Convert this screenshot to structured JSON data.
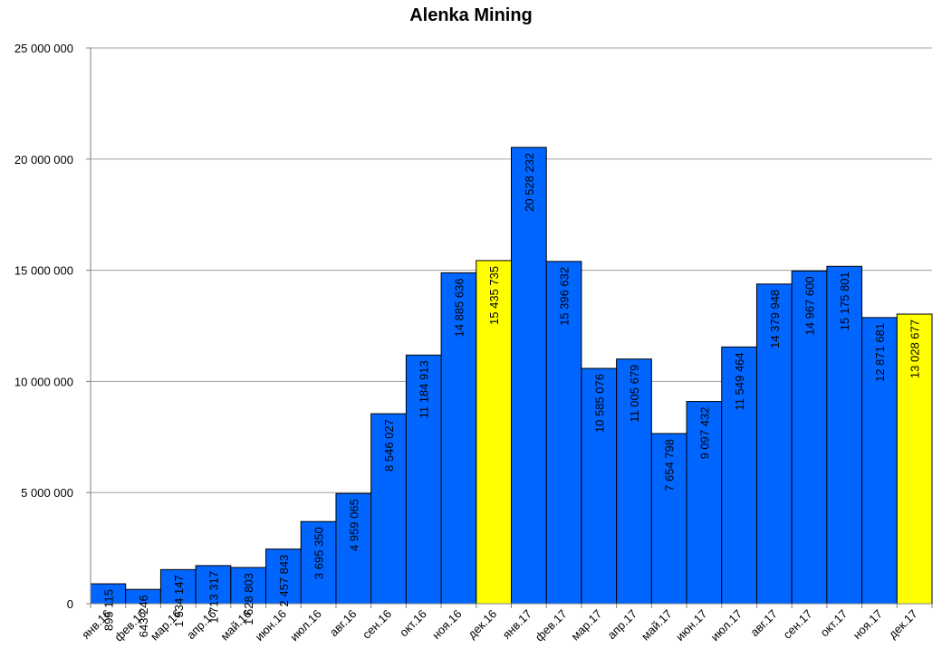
{
  "chart_data": {
    "type": "bar",
    "title": "Alenka Mining",
    "xlabel": "",
    "ylabel": "",
    "ylim": [
      0,
      25000000
    ],
    "yticks": [
      0,
      5000000,
      10000000,
      15000000,
      20000000,
      25000000
    ],
    "ytick_labels": [
      "0",
      "5 000 000",
      "10 000 000",
      "15 000 000",
      "20 000 000",
      "25 000 000"
    ],
    "grid": true,
    "legend": "none",
    "categories": [
      "янв.16",
      "фев.16",
      "мар.16",
      "апр.16",
      "май.16",
      "июн.16",
      "июл.16",
      "авг.16",
      "сен.16",
      "окт.16",
      "ноя.16",
      "дек.16",
      "янв.17",
      "фев.17",
      "мар.17",
      "апр.17",
      "май.17",
      "июн.17",
      "июл.17",
      "авг.17",
      "сен.17",
      "окт.17",
      "ноя.17",
      "дек.17"
    ],
    "values": [
      895115,
      643246,
      1534147,
      1713317,
      1628803,
      2457843,
      3695350,
      4959065,
      8546027,
      11184913,
      14885636,
      15435735,
      20528232,
      15396632,
      10585076,
      11005679,
      7654798,
      9097432,
      11549464,
      14379948,
      14967600,
      15175801,
      12871681,
      13028677
    ],
    "data_labels": [
      "895 115",
      "643 246",
      "1 534 147",
      "1 713 317",
      "1 628 803",
      "2 457 843",
      "3 695 350",
      "4 959 065",
      "8 546 027",
      "11 184 913",
      "14 885 636",
      "15 435 735",
      "20 528 232",
      "15 396 632",
      "10 585 076",
      "11 005 679",
      "7 654 798",
      "9 097 432",
      "11 549 464",
      "14 379 948",
      "14 967 600",
      "15 175 801",
      "12 871 681",
      "13 028 677"
    ],
    "colors": {
      "bar": "#0066ff",
      "highlight": "#ffff00",
      "grid": "#a0a0a0",
      "axis": "#808080"
    },
    "highlight_indices": [
      11,
      23
    ]
  }
}
